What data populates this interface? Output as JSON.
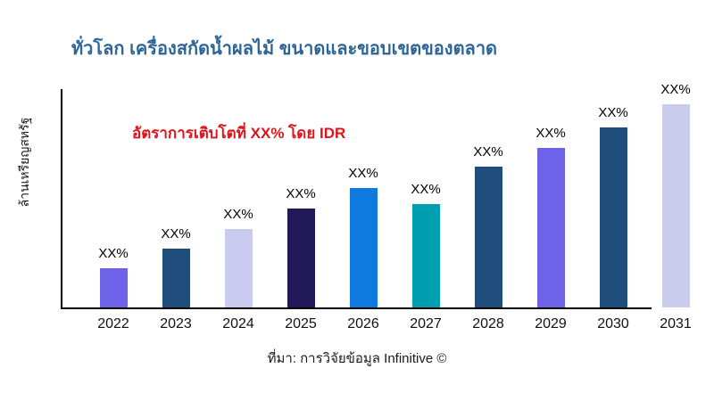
{
  "title": "ทั่วโลก เครื่องสกัดน้ำผลไม้ ขนาดและขอบเขตของตลาด",
  "annotation": {
    "text": "อัตราการเติบโตที่ XX% โดย IDR",
    "color": "#E0121A"
  },
  "source": "ที่มา: การวิจัยข้อมูล Infinitive ©",
  "colors": {
    "title": "#2E6598",
    "axis": "#000000",
    "label_text": "#000000"
  },
  "chart_data": {
    "type": "bar",
    "title": "ทั่วโลก เครื่องสกัดน้ำผลไม้ ขนาดและขอบเขตของตลาด",
    "xlabel": "",
    "ylabel": "ล้านเหรียญสหรัฐ",
    "categories": [
      "2022",
      "2023",
      "2024",
      "2025",
      "2026",
      "2027",
      "2028",
      "2029",
      "2030",
      "2031"
    ],
    "values": [
      19.3,
      28.9,
      38.6,
      48.7,
      58.8,
      50.9,
      69.3,
      78.5,
      88.6,
      100
    ],
    "data_labels": [
      "XX%",
      "XX%",
      "XX%",
      "XX%",
      "XX%",
      "XX%",
      "XX%",
      "XX%",
      "XX%",
      "XX%"
    ],
    "bar_colors": [
      "#6E63E8",
      "#1F4E7D",
      "#C8CBED",
      "#211A56",
      "#0E7AE0",
      "#009FAF",
      "#1F4E7D",
      "#6E63E8",
      "#1F4E7D",
      "#C9CCEC"
    ],
    "ylim": [
      0,
      110
    ],
    "grid": false,
    "legend": false
  }
}
